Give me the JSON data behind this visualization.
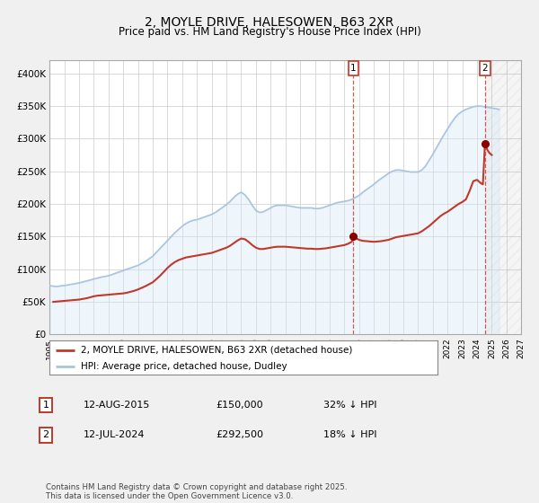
{
  "title": "2, MOYLE DRIVE, HALESOWEN, B63 2XR",
  "subtitle": "Price paid vs. HM Land Registry's House Price Index (HPI)",
  "title_fontsize": 10,
  "subtitle_fontsize": 8.5,
  "xlim": [
    1995,
    2027
  ],
  "ylim": [
    0,
    420000
  ],
  "yticks": [
    0,
    50000,
    100000,
    150000,
    200000,
    250000,
    300000,
    350000,
    400000
  ],
  "ytick_labels": [
    "£0",
    "£50K",
    "£100K",
    "£150K",
    "£200K",
    "£250K",
    "£300K",
    "£350K",
    "£400K"
  ],
  "xticks": [
    1995,
    1996,
    1997,
    1998,
    1999,
    2000,
    2001,
    2002,
    2003,
    2004,
    2005,
    2006,
    2007,
    2008,
    2009,
    2010,
    2011,
    2012,
    2013,
    2014,
    2015,
    2016,
    2017,
    2018,
    2019,
    2020,
    2021,
    2022,
    2023,
    2024,
    2025,
    2026,
    2027
  ],
  "hpi_color": "#a8c4e0",
  "hpi_fill_color": "#d0e4f5",
  "property_color": "#c0392b",
  "property_dot_color": "#8b0000",
  "vline_color": "#c0392b",
  "marker1_year": 2015.62,
  "marker1_value": 150000,
  "marker2_year": 2024.54,
  "marker2_value": 292500,
  "legend_label_property": "2, MOYLE DRIVE, HALESOWEN, B63 2XR (detached house)",
  "legend_label_hpi": "HPI: Average price, detached house, Dudley",
  "annotation1_num": "1",
  "annotation2_num": "2",
  "table_row1": [
    "1",
    "12-AUG-2015",
    "£150,000",
    "32% ↓ HPI"
  ],
  "table_row2": [
    "2",
    "12-JUL-2024",
    "£292,500",
    "18% ↓ HPI"
  ],
  "footnote": "Contains HM Land Registry data © Crown copyright and database right 2025.\nThis data is licensed under the Open Government Licence v3.0.",
  "bg_color": "#f0f0f0",
  "plot_bg_color": "#ffffff",
  "hpi_data": [
    [
      1995.0,
      75000
    ],
    [
      1995.25,
      74000
    ],
    [
      1995.5,
      73500
    ],
    [
      1995.75,
      74500
    ],
    [
      1996.0,
      75000
    ],
    [
      1996.25,
      76000
    ],
    [
      1996.5,
      77000
    ],
    [
      1996.75,
      78000
    ],
    [
      1997.0,
      79000
    ],
    [
      1997.25,
      80500
    ],
    [
      1997.5,
      82000
    ],
    [
      1997.75,
      83500
    ],
    [
      1998.0,
      85000
    ],
    [
      1998.25,
      86500
    ],
    [
      1998.5,
      88000
    ],
    [
      1998.75,
      89000
    ],
    [
      1999.0,
      90000
    ],
    [
      1999.25,
      92000
    ],
    [
      1999.5,
      94000
    ],
    [
      1999.75,
      96000
    ],
    [
      2000.0,
      98000
    ],
    [
      2000.25,
      100000
    ],
    [
      2000.5,
      102000
    ],
    [
      2000.75,
      104000
    ],
    [
      2001.0,
      106000
    ],
    [
      2001.25,
      109000
    ],
    [
      2001.5,
      112000
    ],
    [
      2001.75,
      116000
    ],
    [
      2002.0,
      120000
    ],
    [
      2002.25,
      126000
    ],
    [
      2002.5,
      132000
    ],
    [
      2002.75,
      138000
    ],
    [
      2003.0,
      144000
    ],
    [
      2003.25,
      150000
    ],
    [
      2003.5,
      156000
    ],
    [
      2003.75,
      161000
    ],
    [
      2004.0,
      166000
    ],
    [
      2004.25,
      170000
    ],
    [
      2004.5,
      173000
    ],
    [
      2004.75,
      175000
    ],
    [
      2005.0,
      176000
    ],
    [
      2005.25,
      178000
    ],
    [
      2005.5,
      180000
    ],
    [
      2005.75,
      182000
    ],
    [
      2006.0,
      184000
    ],
    [
      2006.25,
      187000
    ],
    [
      2006.5,
      191000
    ],
    [
      2006.75,
      195000
    ],
    [
      2007.0,
      199000
    ],
    [
      2007.25,
      204000
    ],
    [
      2007.5,
      210000
    ],
    [
      2007.75,
      215000
    ],
    [
      2008.0,
      218000
    ],
    [
      2008.25,
      214000
    ],
    [
      2008.5,
      207000
    ],
    [
      2008.75,
      198000
    ],
    [
      2009.0,
      190000
    ],
    [
      2009.25,
      187000
    ],
    [
      2009.5,
      188000
    ],
    [
      2009.75,
      191000
    ],
    [
      2010.0,
      194000
    ],
    [
      2010.25,
      197000
    ],
    [
      2010.5,
      198000
    ],
    [
      2010.75,
      198000
    ],
    [
      2011.0,
      198000
    ],
    [
      2011.25,
      197000
    ],
    [
      2011.5,
      196000
    ],
    [
      2011.75,
      195000
    ],
    [
      2012.0,
      194000
    ],
    [
      2012.25,
      194000
    ],
    [
      2012.5,
      194000
    ],
    [
      2012.75,
      194000
    ],
    [
      2013.0,
      193000
    ],
    [
      2013.25,
      193000
    ],
    [
      2013.5,
      194000
    ],
    [
      2013.75,
      196000
    ],
    [
      2014.0,
      198000
    ],
    [
      2014.25,
      200000
    ],
    [
      2014.5,
      202000
    ],
    [
      2014.75,
      203000
    ],
    [
      2015.0,
      204000
    ],
    [
      2015.25,
      205000
    ],
    [
      2015.5,
      207000
    ],
    [
      2015.75,
      210000
    ],
    [
      2016.0,
      213000
    ],
    [
      2016.25,
      218000
    ],
    [
      2016.5,
      222000
    ],
    [
      2016.75,
      226000
    ],
    [
      2017.0,
      230000
    ],
    [
      2017.25,
      235000
    ],
    [
      2017.5,
      239000
    ],
    [
      2017.75,
      243000
    ],
    [
      2018.0,
      247000
    ],
    [
      2018.25,
      250000
    ],
    [
      2018.5,
      252000
    ],
    [
      2018.75,
      252000
    ],
    [
      2019.0,
      251000
    ],
    [
      2019.25,
      250000
    ],
    [
      2019.5,
      249000
    ],
    [
      2019.75,
      249000
    ],
    [
      2020.0,
      249000
    ],
    [
      2020.25,
      252000
    ],
    [
      2020.5,
      258000
    ],
    [
      2020.75,
      267000
    ],
    [
      2021.0,
      276000
    ],
    [
      2021.25,
      286000
    ],
    [
      2021.5,
      296000
    ],
    [
      2021.75,
      306000
    ],
    [
      2022.0,
      315000
    ],
    [
      2022.25,
      324000
    ],
    [
      2022.5,
      332000
    ],
    [
      2022.75,
      338000
    ],
    [
      2023.0,
      342000
    ],
    [
      2023.25,
      345000
    ],
    [
      2023.5,
      347000
    ],
    [
      2023.75,
      349000
    ],
    [
      2024.0,
      350000
    ],
    [
      2024.25,
      350000
    ],
    [
      2024.5,
      349000
    ],
    [
      2024.75,
      348000
    ],
    [
      2025.0,
      347000
    ],
    [
      2025.25,
      346000
    ],
    [
      2025.5,
      345000
    ]
  ],
  "property_data": [
    [
      1995.25,
      50000
    ],
    [
      1995.5,
      50500
    ],
    [
      1995.75,
      51000
    ],
    [
      1996.0,
      51500
    ],
    [
      1996.25,
      52000
    ],
    [
      1996.5,
      52500
    ],
    [
      1996.75,
      53000
    ],
    [
      1997.0,
      53500
    ],
    [
      1997.25,
      54500
    ],
    [
      1997.5,
      55500
    ],
    [
      1997.75,
      57000
    ],
    [
      1998.0,
      58500
    ],
    [
      1998.25,
      59500
    ],
    [
      1998.5,
      60000
    ],
    [
      1998.75,
      60500
    ],
    [
      1999.0,
      61000
    ],
    [
      1999.25,
      61500
    ],
    [
      1999.5,
      62000
    ],
    [
      1999.75,
      62500
    ],
    [
      2000.0,
      63000
    ],
    [
      2000.25,
      64000
    ],
    [
      2000.5,
      65500
    ],
    [
      2000.75,
      67000
    ],
    [
      2001.0,
      69000
    ],
    [
      2001.25,
      71500
    ],
    [
      2001.5,
      74000
    ],
    [
      2001.75,
      77000
    ],
    [
      2002.0,
      80000
    ],
    [
      2002.25,
      85000
    ],
    [
      2002.5,
      90000
    ],
    [
      2002.75,
      96000
    ],
    [
      2003.0,
      102000
    ],
    [
      2003.25,
      107000
    ],
    [
      2003.5,
      111000
    ],
    [
      2003.75,
      114000
    ],
    [
      2004.0,
      116000
    ],
    [
      2004.25,
      118000
    ],
    [
      2004.5,
      119000
    ],
    [
      2004.75,
      120000
    ],
    [
      2005.0,
      121000
    ],
    [
      2005.25,
      122000
    ],
    [
      2005.5,
      123000
    ],
    [
      2005.75,
      124000
    ],
    [
      2006.0,
      125000
    ],
    [
      2006.25,
      127000
    ],
    [
      2006.5,
      129000
    ],
    [
      2006.75,
      131000
    ],
    [
      2007.0,
      133000
    ],
    [
      2007.25,
      136000
    ],
    [
      2007.5,
      140000
    ],
    [
      2007.75,
      144000
    ],
    [
      2008.0,
      147000
    ],
    [
      2008.25,
      146000
    ],
    [
      2008.5,
      142000
    ],
    [
      2008.75,
      137000
    ],
    [
      2009.0,
      133000
    ],
    [
      2009.25,
      131000
    ],
    [
      2009.5,
      131000
    ],
    [
      2009.75,
      132000
    ],
    [
      2010.0,
      133000
    ],
    [
      2010.25,
      134000
    ],
    [
      2010.5,
      134500
    ],
    [
      2010.75,
      134500
    ],
    [
      2011.0,
      134500
    ],
    [
      2011.25,
      134000
    ],
    [
      2011.5,
      133500
    ],
    [
      2011.75,
      133000
    ],
    [
      2012.0,
      132500
    ],
    [
      2012.25,
      132000
    ],
    [
      2012.5,
      131500
    ],
    [
      2012.75,
      131500
    ],
    [
      2013.0,
      131000
    ],
    [
      2013.25,
      131000
    ],
    [
      2013.5,
      131500
    ],
    [
      2013.75,
      132000
    ],
    [
      2014.0,
      133000
    ],
    [
      2014.25,
      134000
    ],
    [
      2014.5,
      135000
    ],
    [
      2014.75,
      136000
    ],
    [
      2015.0,
      137000
    ],
    [
      2015.25,
      139000
    ],
    [
      2015.5,
      142000
    ],
    [
      2015.62,
      150000
    ],
    [
      2015.75,
      148000
    ],
    [
      2016.0,
      145000
    ],
    [
      2016.25,
      143500
    ],
    [
      2016.5,
      143000
    ],
    [
      2016.75,
      142500
    ],
    [
      2017.0,
      142000
    ],
    [
      2017.25,
      142500
    ],
    [
      2017.5,
      143000
    ],
    [
      2017.75,
      144000
    ],
    [
      2018.0,
      145000
    ],
    [
      2018.25,
      147000
    ],
    [
      2018.5,
      149000
    ],
    [
      2018.75,
      150000
    ],
    [
      2019.0,
      151000
    ],
    [
      2019.25,
      152000
    ],
    [
      2019.5,
      153000
    ],
    [
      2019.75,
      154000
    ],
    [
      2020.0,
      155000
    ],
    [
      2020.25,
      158000
    ],
    [
      2020.5,
      162000
    ],
    [
      2020.75,
      166000
    ],
    [
      2021.0,
      171000
    ],
    [
      2021.25,
      176000
    ],
    [
      2021.5,
      181000
    ],
    [
      2021.75,
      185000
    ],
    [
      2022.0,
      188000
    ],
    [
      2022.25,
      192000
    ],
    [
      2022.5,
      196000
    ],
    [
      2022.75,
      200000
    ],
    [
      2023.0,
      203000
    ],
    [
      2023.25,
      207000
    ],
    [
      2023.5,
      220000
    ],
    [
      2023.75,
      235000
    ],
    [
      2024.0,
      237000
    ],
    [
      2024.25,
      232000
    ],
    [
      2024.4,
      230000
    ],
    [
      2024.54,
      292500
    ],
    [
      2024.7,
      283000
    ],
    [
      2024.85,
      278000
    ],
    [
      2025.0,
      275000
    ]
  ]
}
